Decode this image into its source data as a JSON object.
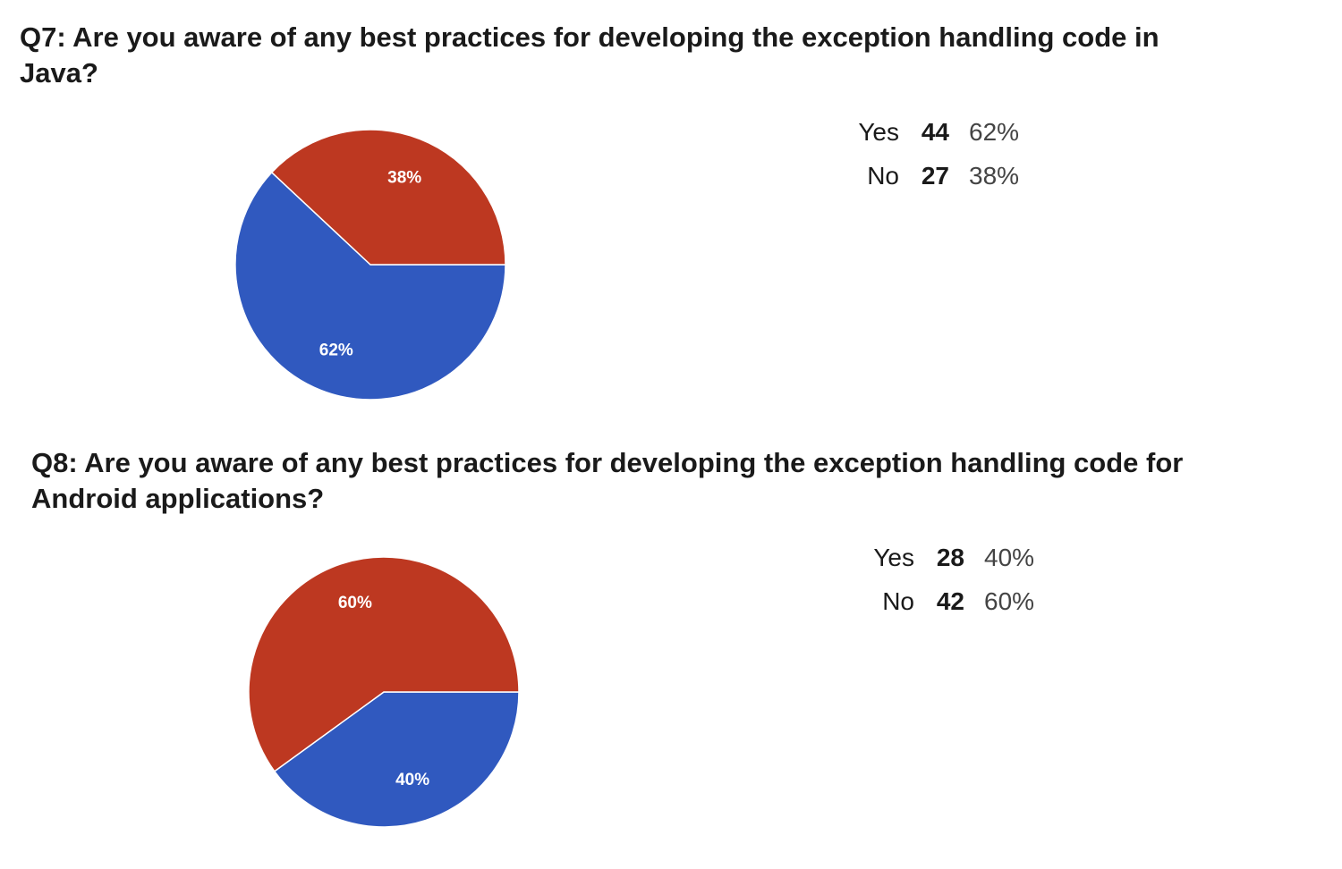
{
  "chart_data": [
    {
      "type": "pie",
      "title": "Q7: Are you aware of any best practices for developing the exception handling code in Java?",
      "title_lines": [
        "Q7: Are you aware of any best practices for developing the exception handling code in",
        "Java?"
      ],
      "slices": [
        {
          "label": "Yes",
          "value": 44,
          "percent": "62%",
          "color": "#3059bf"
        },
        {
          "label": "No",
          "value": 27,
          "percent": "38%",
          "color": "#bd3821"
        }
      ]
    },
    {
      "type": "pie",
      "title": "Q8: Are you aware of any best practices for developing the exception handling code for Android applications?",
      "title_lines": [
        "Q8: Are you aware of any best practices for developing the exception handling code for",
        "Android applications?"
      ],
      "slices": [
        {
          "label": "Yes",
          "value": 28,
          "percent": "40%",
          "color": "#3059bf"
        },
        {
          "label": "No",
          "value": 42,
          "percent": "60%",
          "color": "#bd3821"
        }
      ]
    }
  ]
}
